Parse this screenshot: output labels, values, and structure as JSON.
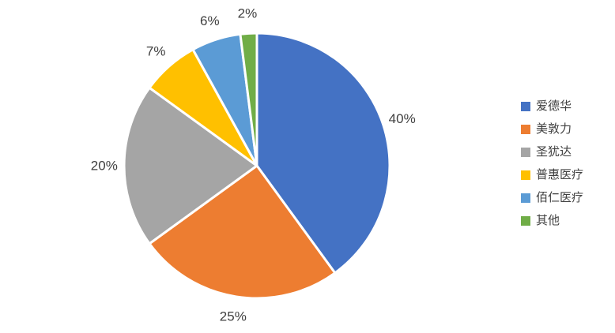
{
  "chart_data": {
    "type": "pie",
    "categories": [
      "爱德华",
      "美敦力",
      "圣犹达",
      "普惠医疗",
      "佰仁医疗",
      "其他"
    ],
    "values": [
      40,
      25,
      20,
      7,
      6,
      2
    ],
    "labels": [
      "40%",
      "25%",
      "20%",
      "7%",
      "6%",
      "2%"
    ],
    "colors": [
      "#4472C4",
      "#ED7D31",
      "#A5A5A5",
      "#FFC000",
      "#5B9BD5",
      "#70AD47"
    ],
    "start_angle_deg": 0,
    "direction": "clockwise",
    "slice_border_color": "#FFFFFF",
    "label_color": "#404040",
    "legend_position": "right",
    "title": ""
  },
  "legend": {
    "items": [
      {
        "label": "爱德华",
        "color": "#4472C4"
      },
      {
        "label": "美敦力",
        "color": "#ED7D31"
      },
      {
        "label": "圣犹达",
        "color": "#A5A5A5"
      },
      {
        "label": "普惠医疗",
        "color": "#FFC000"
      },
      {
        "label": "佰仁医疗",
        "color": "#5B9BD5"
      },
      {
        "label": "其他",
        "color": "#70AD47"
      }
    ]
  }
}
